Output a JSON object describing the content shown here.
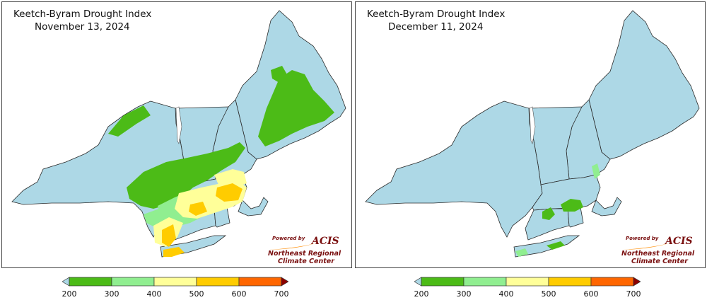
{
  "colors": {
    "background": "#ADD8E6",
    "bin_200_300": "#4CBB17",
    "bin_300_400": "#90EE90",
    "bin_400_500": "#FFFF99",
    "bin_500_600": "#FFCC00",
    "bin_600_700": "#FF6600",
    "over_700": "#8B0000"
  },
  "panels": [
    {
      "title": "Keetch-Byram Drought Index",
      "date": "November 13, 2024",
      "logo_powered": "Powered by",
      "logo_acis": "ACIS",
      "logo_org_line1": "Northeast Regional",
      "logo_org_line2": "Climate Center"
    },
    {
      "title": "Keetch-Byram Drought Index",
      "date": "December 11, 2024",
      "logo_powered": "Powered by",
      "logo_acis": "ACIS",
      "logo_org_line1": "Northeast Regional",
      "logo_org_line2": "Climate Center"
    }
  ],
  "legend": {
    "ticks": [
      "200",
      "300",
      "400",
      "500",
      "600",
      "700"
    ]
  }
}
